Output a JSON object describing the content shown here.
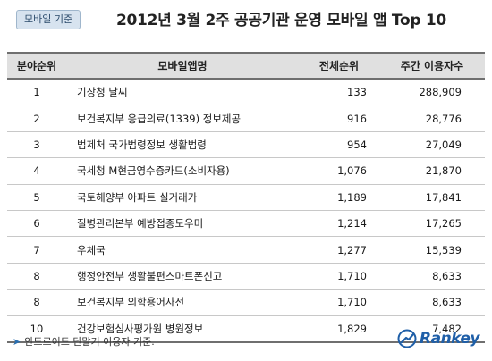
{
  "header": {
    "tag": "모바일 기준",
    "title": "2012년 3월 2주 공공기관 운영 모바일 앱 Top 10"
  },
  "table": {
    "columns": [
      "분야순위",
      "모바일앱명",
      "전체순위",
      "주간 이용자수"
    ],
    "rows": [
      {
        "rank": "1",
        "name": "기상청 날씨",
        "overall": "133",
        "users": "288,909"
      },
      {
        "rank": "2",
        "name": "보건복지부 응급의료(1339) 정보제공",
        "overall": "916",
        "users": "28,776"
      },
      {
        "rank": "3",
        "name": "법제처 국가법령정보 생활법령",
        "overall": "954",
        "users": "27,049"
      },
      {
        "rank": "4",
        "name": "국세청 M현금영수증카드(소비자용)",
        "overall": "1,076",
        "users": "21,870"
      },
      {
        "rank": "5",
        "name": "국토해양부 아파트 실거래가",
        "overall": "1,189",
        "users": "17,841"
      },
      {
        "rank": "6",
        "name": "질병관리본부 예방접종도우미",
        "overall": "1,214",
        "users": "17,265"
      },
      {
        "rank": "7",
        "name": "우체국",
        "overall": "1,277",
        "users": "15,539"
      },
      {
        "rank": "8",
        "name": "행정안전부 생활불편스마트폰신고",
        "overall": "1,710",
        "users": "8,633"
      },
      {
        "rank": "8",
        "name": "보건복지부 의학용어사전",
        "overall": "1,710",
        "users": "8,633"
      },
      {
        "rank": "10",
        "name": "건강보험심사평가원 병원정보",
        "overall": "1,829",
        "users": "7,482"
      }
    ]
  },
  "footer": {
    "note": "안드로이드 단말기 이용자 기준.",
    "logo_text": "Rankey"
  },
  "colors": {
    "header_fill": "#e0e0e0",
    "rule": "#6f6f6f",
    "brand": "#1f5fa8"
  },
  "icons": [
    "arrow-icon",
    "rankey-logo-icon"
  ]
}
